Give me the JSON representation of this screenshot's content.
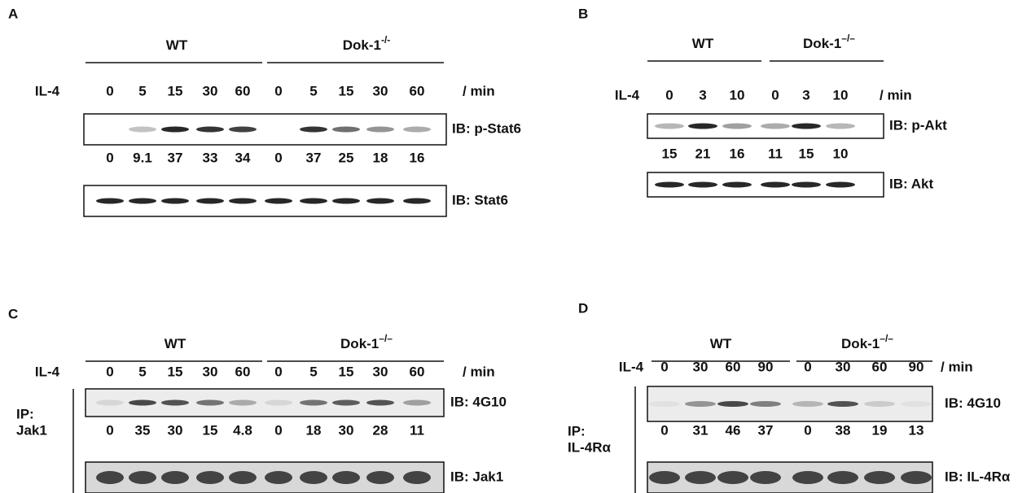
{
  "panels": [
    {
      "letter": "A",
      "groups": [
        {
          "name": "WT"
        },
        {
          "name": "Dok-1",
          "sup": "-/-"
        }
      ],
      "treatment": "IL-4",
      "times": [
        0,
        5,
        15,
        30,
        60,
        0,
        5,
        15,
        30,
        60
      ],
      "unit": "/ min",
      "blots": [
        {
          "label": "IB: p-Stat6"
        },
        {
          "label": "IB: Stat6"
        }
      ],
      "quantification": [
        0,
        9.1,
        37,
        33,
        34,
        0,
        37,
        25,
        18,
        16
      ]
    },
    {
      "letter": "B",
      "groups": [
        {
          "name": "WT"
        },
        {
          "name": "Dok-1",
          "sup": "–/–"
        }
      ],
      "treatment": "IL-4",
      "times": [
        0,
        3,
        10,
        0,
        3,
        10
      ],
      "unit": "/ min",
      "blots": [
        {
          "label": "IB: p-Akt"
        },
        {
          "label": "IB: Akt"
        }
      ],
      "quantification": [
        15,
        21,
        16,
        11,
        15,
        10
      ]
    },
    {
      "letter": "C",
      "groups": [
        {
          "name": "WT"
        },
        {
          "name": "Dok-1",
          "sup": "–/–"
        }
      ],
      "treatment": "IL-4",
      "times": [
        0,
        5,
        15,
        30,
        60,
        0,
        5,
        15,
        30,
        60
      ],
      "unit": "/ min",
      "ip": {
        "prefix": "IP:",
        "target": "Jak1"
      },
      "blots": [
        {
          "label": "IB: 4G10"
        },
        {
          "label": "IB: Jak1"
        }
      ],
      "quantification": [
        0,
        35,
        30,
        15,
        4.8,
        0,
        18,
        30,
        28,
        11
      ]
    },
    {
      "letter": "D",
      "groups": [
        {
          "name": "WT"
        },
        {
          "name": "Dok-1",
          "sup": "–/–"
        }
      ],
      "treatment": "IL-4",
      "times": [
        0,
        30,
        60,
        90,
        0,
        30,
        60,
        90
      ],
      "unit": "/ min",
      "ip": {
        "prefix": "IP:",
        "target": "IL-4Rα"
      },
      "blots": [
        {
          "label": "IB: 4G10"
        },
        {
          "label": "IB: IL-4Rα"
        }
      ],
      "quantification": [
        0,
        31,
        46,
        37,
        0,
        38,
        19,
        13
      ]
    }
  ]
}
